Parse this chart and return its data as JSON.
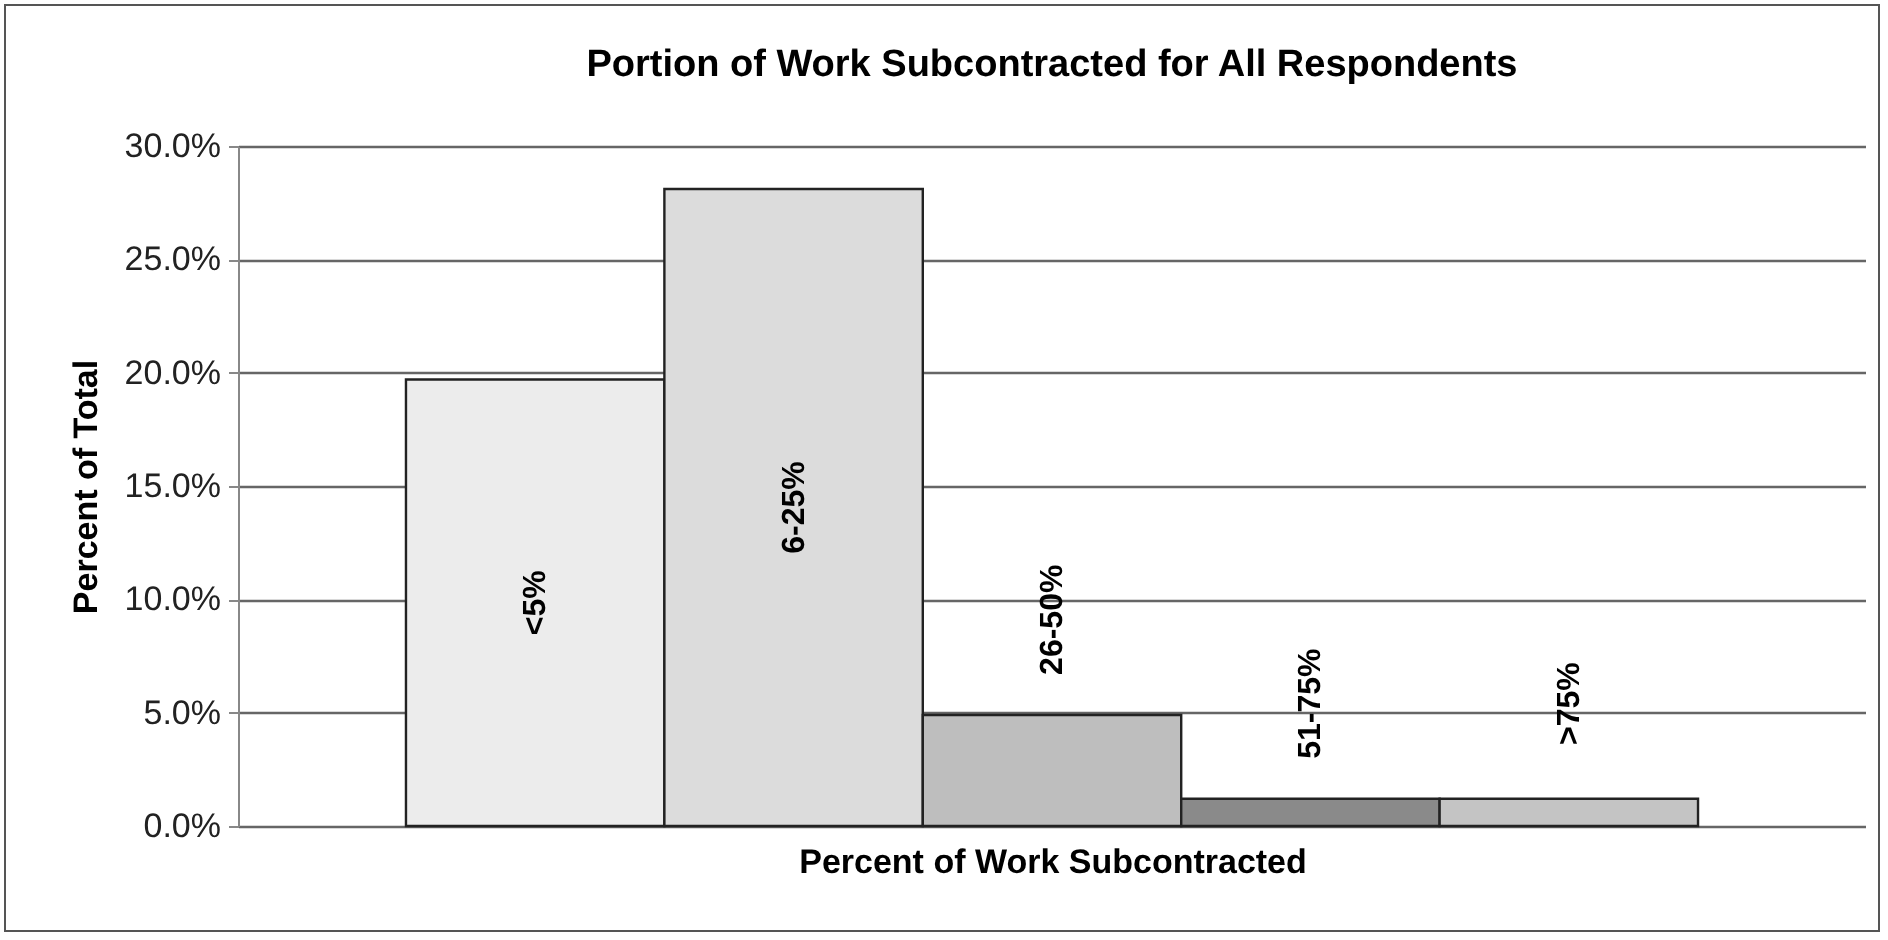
{
  "chart_data": {
    "type": "bar",
    "title": "Portion of Work Subcontracted for All Respondents",
    "xlabel": "Percent of Work Subcontracted",
    "ylabel": "Percent of Total",
    "categories": [
      "<5%",
      "6-25%",
      "26-50%",
      "51-75%",
      ">75%"
    ],
    "values": [
      19.7,
      28.1,
      4.9,
      1.2,
      1.2
    ],
    "colors": [
      "#ececec",
      "#dcdcdc",
      "#bebebe",
      "#8a8a8a",
      "#c4c4c4"
    ],
    "ylim": [
      0,
      30
    ],
    "yticks": [
      {
        "value": 0,
        "label": "0.0%"
      },
      {
        "value": 5,
        "label": "5.0%"
      },
      {
        "value": 10,
        "label": "10.0%"
      },
      {
        "value": 15,
        "label": "15.0%"
      },
      {
        "value": 20,
        "label": "20.0%"
      },
      {
        "value": 25,
        "label": "25.0%"
      },
      {
        "value": 30,
        "label": "30.0%"
      }
    ],
    "grid": "y"
  }
}
